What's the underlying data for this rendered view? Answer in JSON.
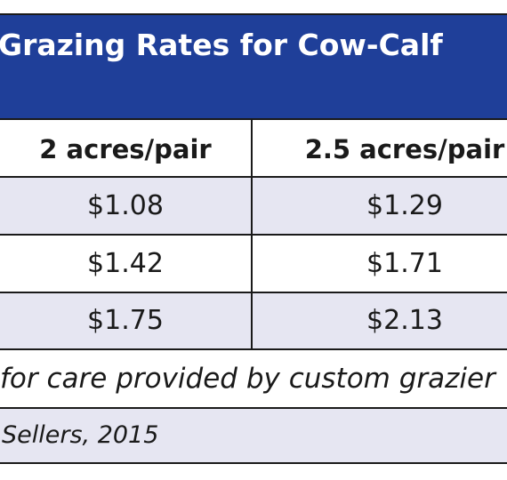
{
  "table": {
    "title": "Grazing Rates for Cow-Calf",
    "columns": [
      "2 acres/pair",
      "2.5 acres/pair"
    ],
    "rows": [
      [
        "$1.08",
        "$1.29"
      ],
      [
        "$1.42",
        "$1.71"
      ],
      [
        "$1.75",
        "$2.13"
      ]
    ],
    "footnote": "for care provided by custom grazier",
    "source": "Sellers, 2015"
  },
  "colors": {
    "title_band": "#1f3f99",
    "title_text": "#ffffff",
    "row_shaded": "#e6e6f2",
    "border": "#1a1a1a"
  }
}
